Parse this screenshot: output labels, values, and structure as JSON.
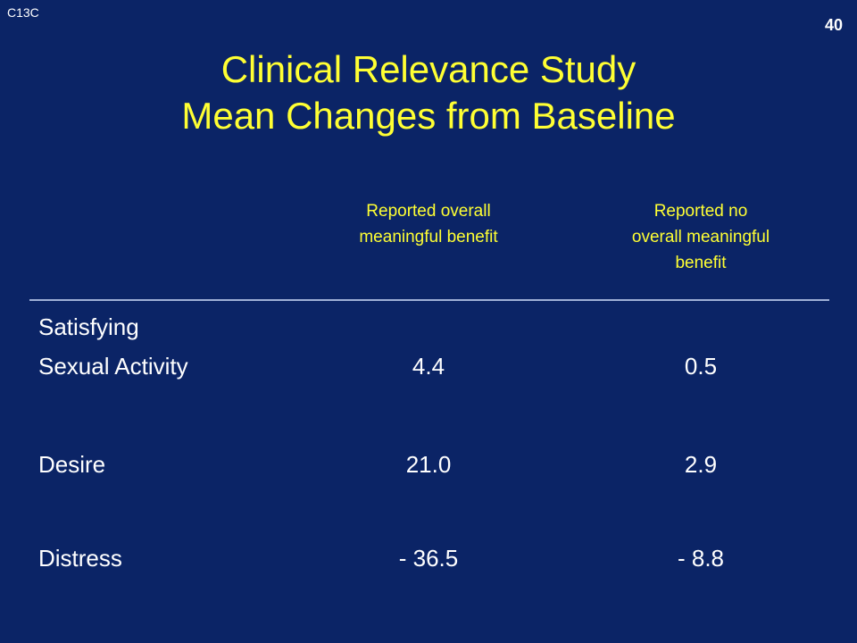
{
  "slide": {
    "code": "C13C",
    "number": "40",
    "title_line1": "Clinical Relevance Study",
    "title_line2": "Mean Changes from Baseline"
  },
  "table": {
    "headers": [
      {
        "lines": [
          "Reported overall",
          "meaningful benefit"
        ]
      },
      {
        "lines": [
          "Reported no",
          "overall meaningful",
          "benefit"
        ]
      }
    ],
    "rows": [
      {
        "label_lines": [
          "Satisfying",
          "Sexual Activity"
        ],
        "values": [
          "4.4",
          "0.5"
        ]
      },
      {
        "label_lines": [
          "Desire"
        ],
        "values": [
          "21.0",
          "2.9"
        ]
      },
      {
        "label_lines": [
          "Distress"
        ],
        "values": [
          "- 36.5",
          "- 8.8"
        ]
      }
    ]
  },
  "colors": {
    "background": "#0b2466",
    "title": "#ffff33",
    "header_text": "#ffff33",
    "body_text": "#ffffff",
    "divider": "#9fb0d6"
  }
}
